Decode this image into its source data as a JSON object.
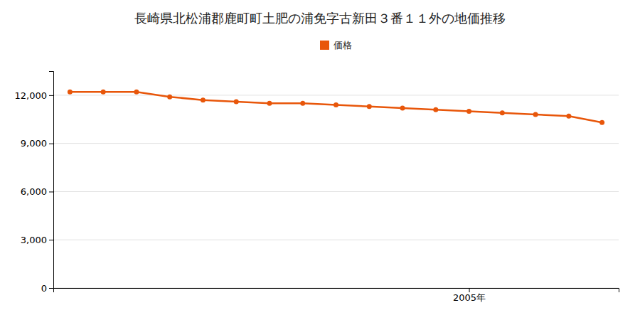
{
  "chart_data": {
    "type": "line",
    "title": "長崎県北松浦郡鹿町町土肥の浦免字古新田３番１１外の地価推移",
    "x": [
      1993,
      1994,
      1995,
      1996,
      1997,
      1998,
      1999,
      2000,
      2001,
      2002,
      2003,
      2004,
      2005,
      2006,
      2007,
      2008,
      2009
    ],
    "series": [
      {
        "name": "価格",
        "color": "#e8560a",
        "marker": "circle",
        "values": [
          12200,
          12200,
          12200,
          11900,
          11700,
          11600,
          11500,
          11500,
          11400,
          11300,
          11200,
          11100,
          11000,
          10900,
          10800,
          10700,
          10300
        ]
      }
    ],
    "xlim": [
      1992.5,
      2009.5
    ],
    "xticks": [
      {
        "value": 2005,
        "label": "2005年"
      }
    ],
    "ylim": [
      0,
      13500
    ],
    "yticks": [
      0,
      {
        "value": 3000,
        "label": "3,000"
      },
      {
        "value": 6000,
        "label": "6,000"
      },
      {
        "value": 9000,
        "label": "9,000"
      },
      {
        "value": 12000,
        "label": "12,000"
      }
    ],
    "grid": true,
    "legend": "top"
  }
}
